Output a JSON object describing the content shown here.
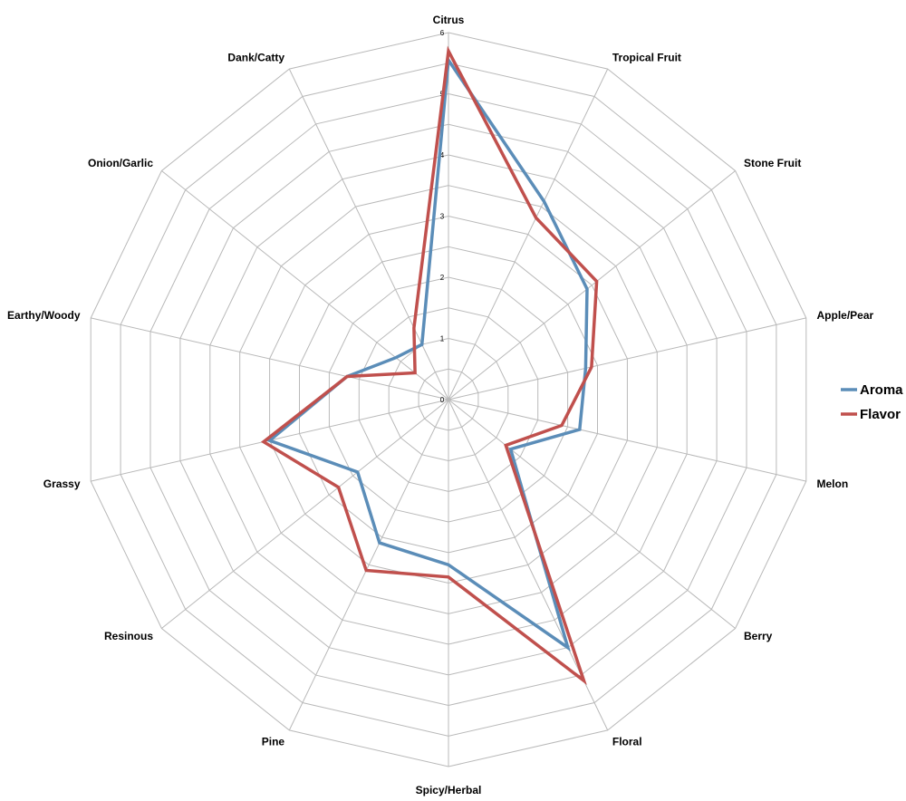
{
  "chart_data": {
    "type": "radar",
    "categories": [
      "Citrus",
      "Tropical Fruit",
      "Stone Fruit",
      "Apple/Pear",
      "Melon",
      "Berry",
      "Floral",
      "Spicy/Herbal",
      "Pine",
      "Resinous",
      "Grassy",
      "Earthy/Woody",
      "Onion/Garlic",
      "Dank/Catty"
    ],
    "rlim": [
      0,
      6
    ],
    "ticks": [
      0,
      1,
      2,
      3,
      4,
      5,
      6
    ],
    "grid": true,
    "legend_position": "right",
    "series": [
      {
        "name": "Aroma",
        "color": "#5b8db8",
        "values": [
          5.55,
          3.6,
          2.9,
          2.3,
          2.2,
          1.3,
          4.5,
          2.7,
          2.6,
          1.9,
          3.0,
          1.7,
          1.1,
          1.0
        ]
      },
      {
        "name": "Flavor",
        "color": "#c0504d",
        "values": [
          5.7,
          3.3,
          3.1,
          2.4,
          1.9,
          1.2,
          5.1,
          2.9,
          3.1,
          2.3,
          3.1,
          1.7,
          0.7,
          1.3
        ]
      }
    ]
  }
}
